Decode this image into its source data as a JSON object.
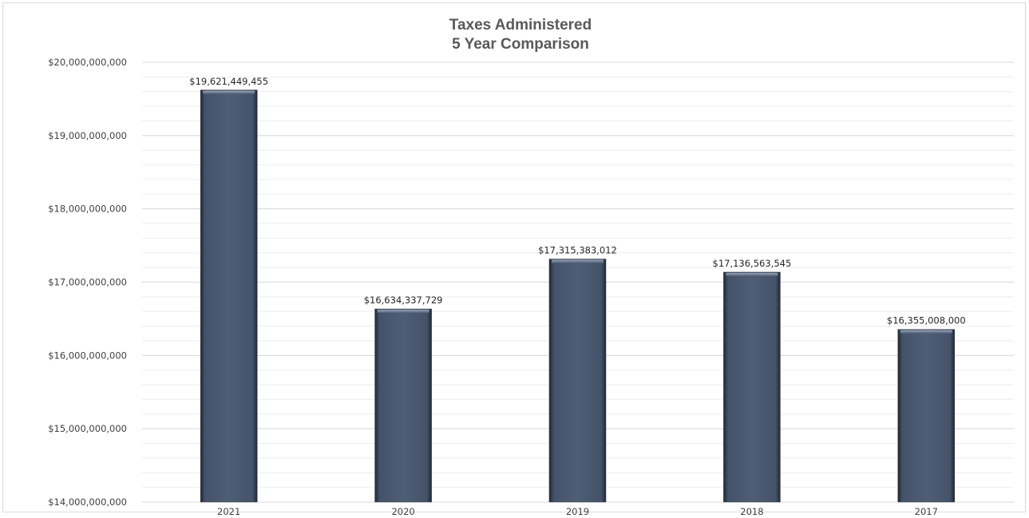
{
  "chart_data": {
    "type": "bar",
    "title": "Taxes Administered",
    "subtitle": "5 Year Comparison",
    "categories": [
      "2021",
      "2020",
      "2019",
      "2018",
      "2017"
    ],
    "values": [
      19621449455,
      16634337729,
      17315383012,
      17136563545,
      16355008000
    ],
    "data_labels": [
      "$19,621,449,455",
      "$16,634,337,729",
      "$17,315,383,012",
      "$17,136,563,545",
      "$16,355,008,000"
    ],
    "ylim": [
      14000000000,
      20000000000
    ],
    "y_major_step": 1000000000,
    "y_minor_step": 200000000,
    "y_tick_labels": [
      "$14,000,000,000",
      "$15,000,000,000",
      "$16,000,000,000",
      "$17,000,000,000",
      "$18,000,000,000",
      "$19,000,000,000",
      "$20,000,000,000"
    ],
    "xlabel": "",
    "ylabel": "",
    "grid": true,
    "legend": false,
    "colors": {
      "bar": "#4d5b70",
      "bar_edge": "#2e3746",
      "major_grid": "#d9d9d9",
      "minor_grid": "#eeeeee",
      "title": "#595959"
    }
  }
}
